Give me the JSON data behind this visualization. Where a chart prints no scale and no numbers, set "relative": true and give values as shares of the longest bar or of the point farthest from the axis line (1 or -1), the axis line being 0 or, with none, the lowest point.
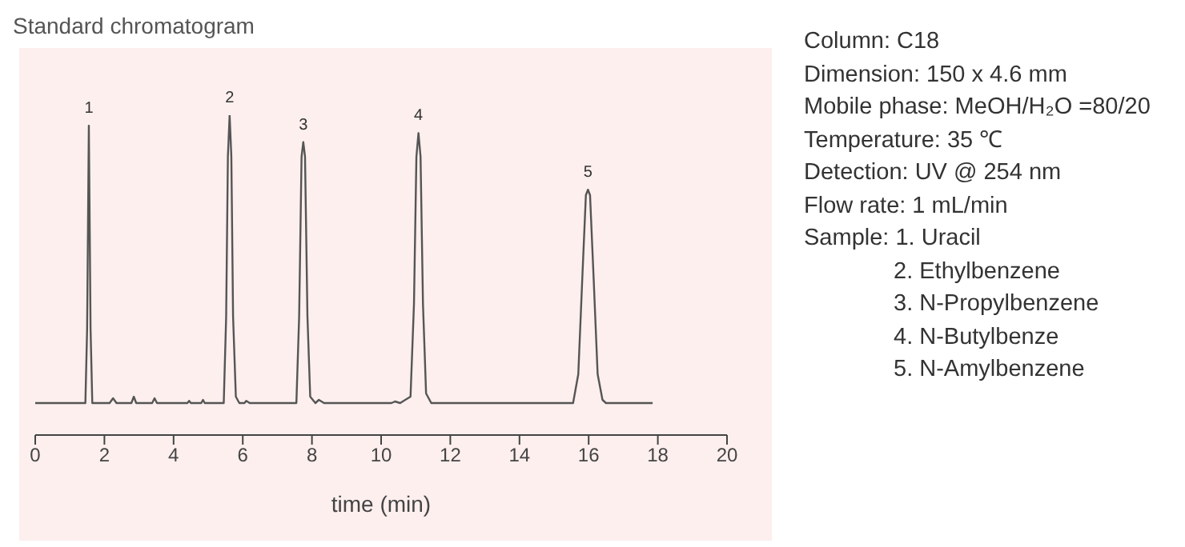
{
  "chart_data": {
    "type": "line",
    "title": "Standard chromatogram",
    "xlabel": "time  (min)",
    "relative": true,
    "xlim": [
      0,
      20
    ],
    "xticks": [
      0,
      2,
      4,
      6,
      8,
      10,
      12,
      14,
      16,
      18,
      20
    ],
    "grid": false,
    "legend": false,
    "marker": "none",
    "line_style": "solid",
    "series": [
      {
        "color": "#555555",
        "x": [
          0,
          1.45,
          1.5,
          1.55,
          1.6,
          1.65,
          2.15,
          2.25,
          2.35,
          2.78,
          2.85,
          2.92,
          3.38,
          3.45,
          3.52,
          4.4,
          4.45,
          4.5,
          4.8,
          4.85,
          4.9,
          5.45,
          5.52,
          5.57,
          5.62,
          5.67,
          5.72,
          5.8,
          5.9,
          6.05,
          6.1,
          6.2,
          7.55,
          7.63,
          7.7,
          7.75,
          7.8,
          7.87,
          7.95,
          8.1,
          8.2,
          8.35,
          10.3,
          10.4,
          10.55,
          10.85,
          10.95,
          11.02,
          11.08,
          11.14,
          11.21,
          11.3,
          11.45,
          15.55,
          15.7,
          15.82,
          15.92,
          15.98,
          16.04,
          16.14,
          16.26,
          16.4,
          16.5,
          17.85
        ],
        "values": [
          0.1,
          0.1,
          0.33,
          0.967,
          0.33,
          0.1,
          0.1,
          0.115,
          0.1,
          0.1,
          0.12,
          0.1,
          0.1,
          0.115,
          0.1,
          0.1,
          0.107,
          0.1,
          0.1,
          0.11,
          0.1,
          0.1,
          0.37,
          0.87,
          1,
          0.87,
          0.37,
          0.12,
          0.1,
          0.1,
          0.107,
          0.1,
          0.1,
          0.37,
          0.87,
          0.916,
          0.87,
          0.37,
          0.12,
          0.1,
          0.11,
          0.1,
          0.1,
          0.105,
          0.1,
          0.12,
          0.41,
          0.87,
          0.944,
          0.87,
          0.41,
          0.13,
          0.1,
          0.1,
          0.19,
          0.5,
          0.75,
          0.767,
          0.75,
          0.5,
          0.19,
          0.11,
          0.1,
          0.1
        ]
      }
    ],
    "annotations": [
      {
        "text": "1",
        "x": 1.55,
        "y": 0.967
      },
      {
        "text": "2",
        "x": 5.62,
        "y": 1
      },
      {
        "text": "3",
        "x": 7.75,
        "y": 0.916
      },
      {
        "text": "4",
        "x": 11.08,
        "y": 0.944
      },
      {
        "text": "5",
        "x": 15.98,
        "y": 0.767
      },
      "Column: C18",
      "Dimension: 150 x 4.6 mm",
      "Mobile phase: MeOH/H₂O =80/20",
      "Temperature: 35 ℃",
      "Detection: UV @ 254 nm",
      "Flow rate: 1 mL/min",
      "Sample: 1. Uracil",
      "2. Ethylbenzene",
      "3. N-Propylbenzene",
      "4. N-Butylbenze",
      "5. N-Amylbenzene"
    ]
  }
}
